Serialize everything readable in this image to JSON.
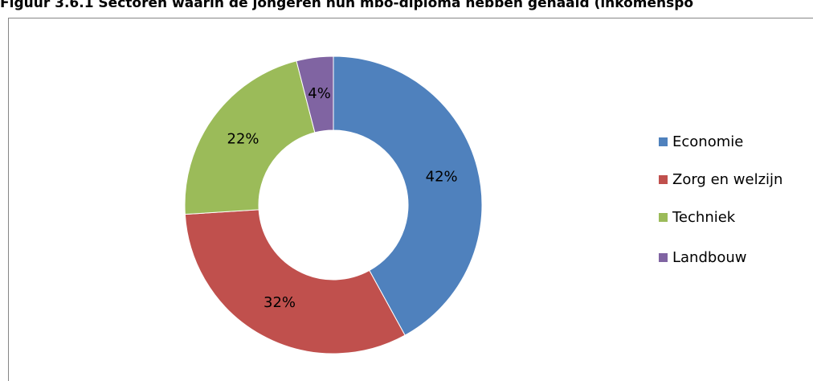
{
  "chart_data": {
    "type": "donut",
    "title": "Figuur 3.6.1 Sectoren waarin de jongeren hun mbo-diploma hebben gehaald (inkomenspo",
    "categories": [
      "Economie",
      "Zorg en welzijn",
      "Techniek",
      "Landbouw"
    ],
    "values": [
      42,
      32,
      22,
      4
    ],
    "value_labels": [
      "42%",
      "32%",
      "22%",
      "4%"
    ],
    "colors": [
      "#4f81bd",
      "#c0504d",
      "#9bbb59",
      "#8064a2"
    ],
    "legend": "right"
  }
}
